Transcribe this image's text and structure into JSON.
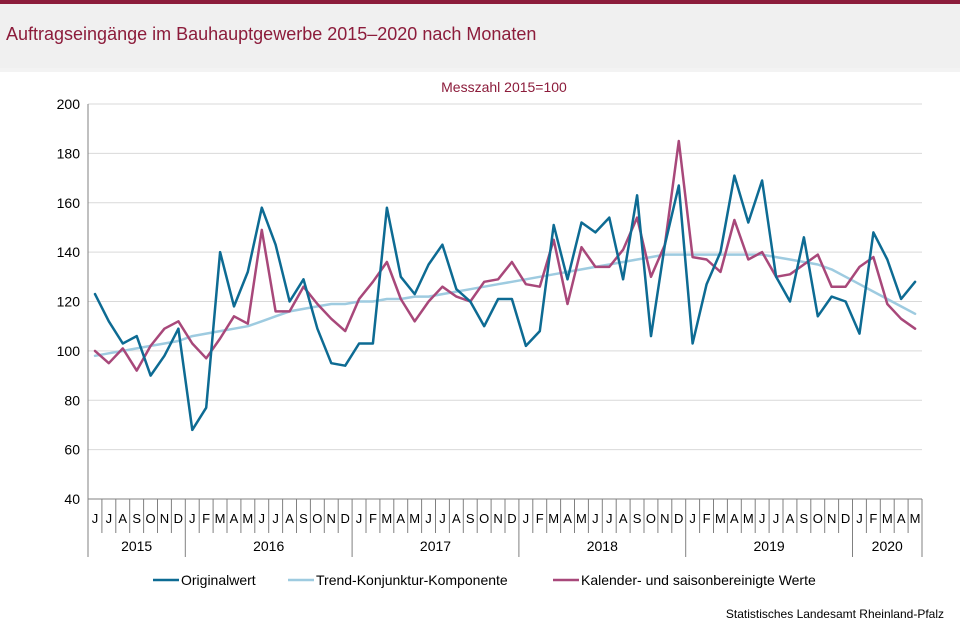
{
  "title": "Auftragseingänge im Bauhauptgewerbe 2015–2020 nach Monaten",
  "source": "Statistisches Landesamt  Rheinland-Pfalz",
  "colors": {
    "brand": "#8c1c3b",
    "series_original": "#0d6b93",
    "series_trend": "#9ecbe0",
    "series_adjusted": "#a8487a",
    "grid": "#d9d9d9"
  },
  "chart_data": {
    "type": "line",
    "subtitle": "Messzahl  2015=100",
    "ylim": [
      40,
      200
    ],
    "y_ticks": [
      40,
      60,
      80,
      100,
      120,
      140,
      160,
      180,
      200
    ],
    "grid": "horizontal",
    "legend_position": "bottom",
    "month_labels": [
      "J",
      "J",
      "A",
      "S",
      "O",
      "N",
      "D",
      "J",
      "F",
      "M",
      "A",
      "M",
      "J",
      "J",
      "A",
      "S",
      "O",
      "N",
      "D",
      "J",
      "F",
      "M",
      "A",
      "M",
      "J",
      "J",
      "A",
      "S",
      "O",
      "N",
      "D",
      "J",
      "F",
      "M",
      "A",
      "M",
      "J",
      "J",
      "A",
      "S",
      "O",
      "N",
      "D",
      "J",
      "F",
      "M",
      "A",
      "M",
      "J",
      "J",
      "A",
      "S",
      "O",
      "N",
      "D",
      "J",
      "F",
      "M",
      "A",
      "M"
    ],
    "year_groups": [
      {
        "label": "2015",
        "count": 7
      },
      {
        "label": "2016",
        "count": 12
      },
      {
        "label": "2017",
        "count": 12
      },
      {
        "label": "2018",
        "count": 12
      },
      {
        "label": "2019",
        "count": 12
      },
      {
        "label": "2020",
        "count": 5
      }
    ],
    "series": [
      {
        "name": "Originalwert",
        "color": "#0d6b93",
        "values": [
          123,
          112,
          103,
          106,
          90,
          98,
          109,
          68,
          77,
          140,
          118,
          132,
          158,
          143,
          120,
          129,
          109,
          95,
          94,
          103,
          103,
          158,
          130,
          123,
          135,
          143,
          125,
          120,
          110,
          121,
          121,
          102,
          108,
          151,
          129,
          152,
          148,
          154,
          129,
          163,
          106,
          143,
          167,
          103,
          127,
          140,
          171,
          152,
          169,
          130,
          120,
          146,
          114,
          122,
          120,
          107,
          148,
          137,
          121,
          128
        ]
      },
      {
        "name": "Trend-Konjunktur-Komponente",
        "color": "#9ecbe0",
        "values": [
          98,
          99,
          100,
          101,
          102,
          103,
          104,
          106,
          107,
          108,
          109,
          110,
          112,
          114,
          116,
          117,
          118,
          119,
          119,
          120,
          120,
          121,
          121,
          122,
          122,
          123,
          124,
          125,
          126,
          127,
          128,
          129,
          130,
          131,
          132,
          133,
          134,
          135,
          136,
          137,
          138,
          139,
          139,
          139,
          139,
          139,
          139,
          139,
          139,
          138,
          137,
          136,
          135,
          133,
          130,
          127,
          124,
          121,
          118,
          115
        ]
      },
      {
        "name": "Kalender- und saisonbereinigte Werte",
        "color": "#a8487a",
        "values": [
          100,
          95,
          101,
          92,
          102,
          109,
          112,
          103,
          97,
          105,
          114,
          111,
          149,
          116,
          116,
          126,
          119,
          113,
          108,
          121,
          128,
          136,
          121,
          112,
          120,
          126,
          122,
          120,
          128,
          129,
          136,
          127,
          126,
          145,
          119,
          142,
          134,
          134,
          141,
          154,
          130,
          143,
          185,
          138,
          137,
          132,
          153,
          137,
          140,
          130,
          131,
          135,
          139,
          126,
          126,
          134,
          138,
          119,
          113,
          109
        ]
      }
    ]
  }
}
